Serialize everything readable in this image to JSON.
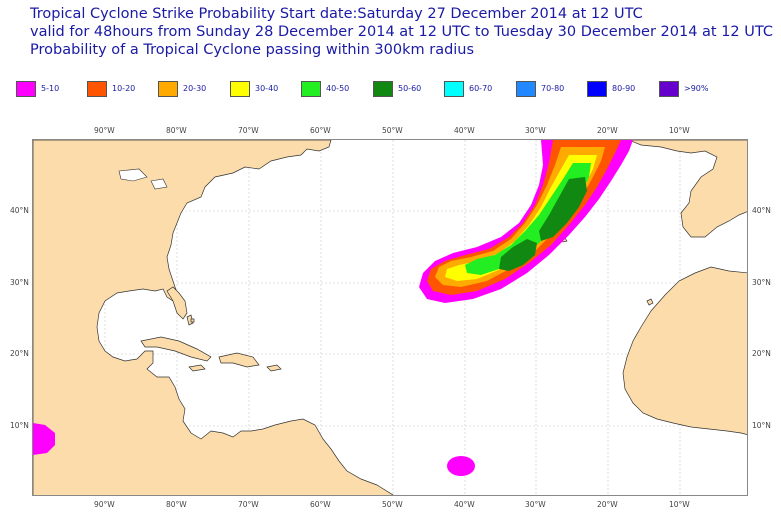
{
  "header": {
    "line1": "Tropical Cyclone Strike Probability Start date:Saturday 27 December 2014 at 12 UTC",
    "line2": "valid for 48hours from Sunday 28 December 2014 at 12 UTC to  Tuesday 30 December 2014 at 12 UTC",
    "line3": "Probability of a Tropical Cyclone passing within 300km radius"
  },
  "legend": [
    {
      "label": "5-10",
      "color": "#ff00ff"
    },
    {
      "label": "10-20",
      "color": "#ff5500"
    },
    {
      "label": "20-30",
      "color": "#ffaa00"
    },
    {
      "label": "30-40",
      "color": "#ffff00"
    },
    {
      "label": "40-50",
      "color": "#22ee22"
    },
    {
      "label": "50-60",
      "color": "#118811"
    },
    {
      "label": "60-70",
      "color": "#00ffff"
    },
    {
      "label": "70-80",
      "color": "#2288ff"
    },
    {
      "label": "80-90",
      "color": "#0000ff"
    },
    {
      "label": ">90%",
      "color": "#6600cc"
    }
  ],
  "map": {
    "longitude_labels": [
      "90°W",
      "80°W",
      "70°W",
      "60°W",
      "50°W",
      "40°W",
      "30°W",
      "20°W",
      "10°W"
    ],
    "latitude_labels": [
      "40°N",
      "30°N",
      "20°N",
      "10°N"
    ],
    "land_color": "#fbdcaa",
    "coast_color": "#333333"
  }
}
